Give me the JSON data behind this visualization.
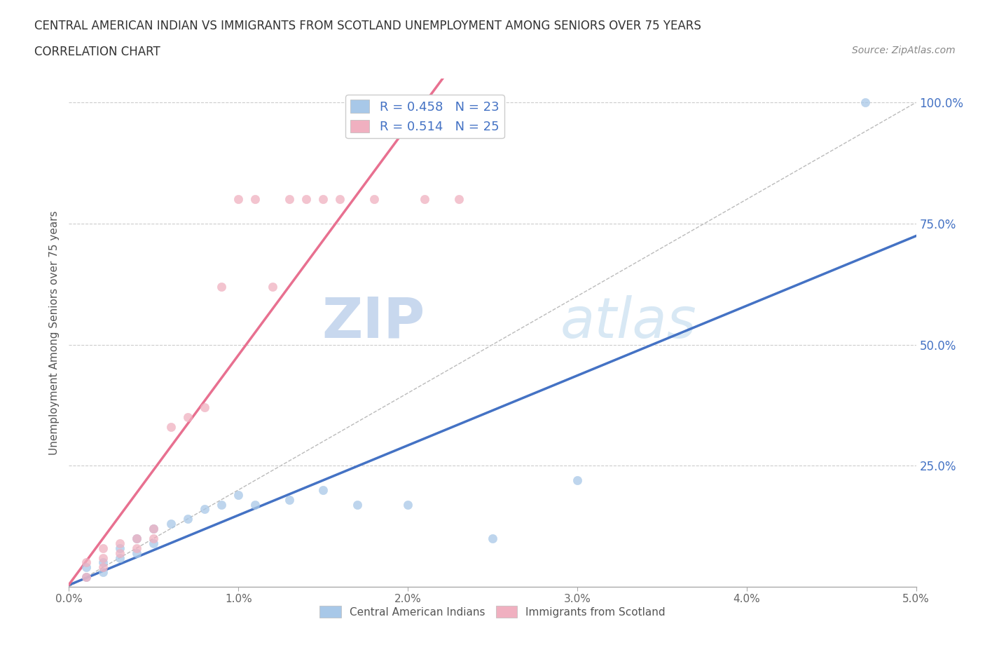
{
  "title_line1": "CENTRAL AMERICAN INDIAN VS IMMIGRANTS FROM SCOTLAND UNEMPLOYMENT AMONG SENIORS OVER 75 YEARS",
  "title_line2": "CORRELATION CHART",
  "source_text": "Source: ZipAtlas.com",
  "ylabel": "Unemployment Among Seniors over 75 years",
  "xlim": [
    0.0,
    0.05
  ],
  "ylim": [
    0.0,
    1.05
  ],
  "xticks": [
    0.0,
    0.01,
    0.02,
    0.03,
    0.04,
    0.05
  ],
  "xticklabels": [
    "0.0%",
    "1.0%",
    "2.0%",
    "3.0%",
    "4.0%",
    "5.0%"
  ],
  "yticks": [
    0.25,
    0.5,
    0.75,
    1.0
  ],
  "yticklabels": [
    "25.0%",
    "50.0%",
    "75.0%",
    "100.0%"
  ],
  "grid_color": "#cccccc",
  "background_color": "#ffffff",
  "watermark_zip": "ZIP",
  "watermark_atlas": "atlas",
  "legend_R1": "R = 0.458",
  "legend_N1": "N = 23",
  "legend_R2": "R = 0.514",
  "legend_N2": "N = 25",
  "blue_color": "#a8c8e8",
  "pink_color": "#f0b0c0",
  "blue_line_color": "#4472c4",
  "pink_line_color": "#e87090",
  "label1": "Central American Indians",
  "label2": "Immigrants from Scotland",
  "blue_points_x": [
    0.001,
    0.001,
    0.002,
    0.002,
    0.003,
    0.003,
    0.004,
    0.004,
    0.005,
    0.005,
    0.006,
    0.007,
    0.008,
    0.009,
    0.01,
    0.011,
    0.013,
    0.015,
    0.017,
    0.02,
    0.025,
    0.03,
    0.047
  ],
  "blue_points_y": [
    0.02,
    0.04,
    0.03,
    0.05,
    0.06,
    0.08,
    0.07,
    0.1,
    0.09,
    0.12,
    0.13,
    0.14,
    0.16,
    0.17,
    0.19,
    0.17,
    0.18,
    0.2,
    0.17,
    0.17,
    0.1,
    0.22,
    1.0
  ],
  "pink_points_x": [
    0.001,
    0.001,
    0.002,
    0.002,
    0.002,
    0.003,
    0.003,
    0.004,
    0.004,
    0.005,
    0.005,
    0.006,
    0.007,
    0.008,
    0.009,
    0.01,
    0.011,
    0.012,
    0.013,
    0.014,
    0.015,
    0.016,
    0.018,
    0.021,
    0.023
  ],
  "pink_points_y": [
    0.02,
    0.05,
    0.04,
    0.06,
    0.08,
    0.07,
    0.09,
    0.08,
    0.1,
    0.1,
    0.12,
    0.33,
    0.35,
    0.37,
    0.62,
    0.8,
    0.8,
    0.62,
    0.8,
    0.8,
    0.8,
    0.8,
    0.8,
    0.8,
    0.8
  ],
  "marker_size": 80
}
